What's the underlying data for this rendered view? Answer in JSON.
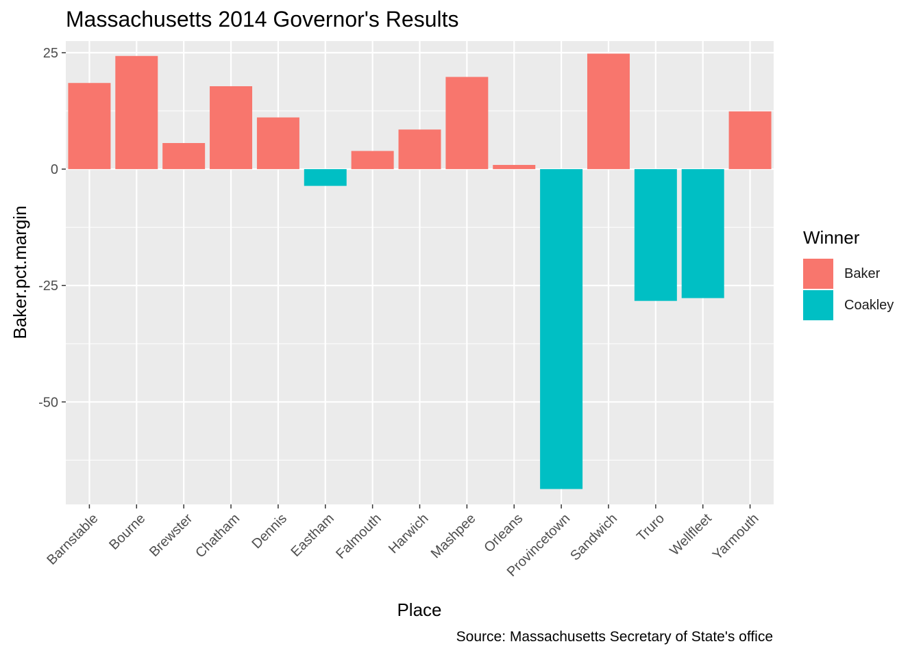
{
  "chart_data": {
    "type": "bar",
    "title": "Massachusetts 2014 Governor's Results",
    "xlabel": "Place",
    "ylabel": "Baker.pct.margin",
    "caption": "Source: Massachusetts Secretary of State's office",
    "ylim": [
      -72,
      27.5
    ],
    "yticks": [
      25,
      0,
      -25,
      -50
    ],
    "ytick_labels": [
      "25",
      "0",
      "-25",
      "-50"
    ],
    "grid": true,
    "legend_position": "right",
    "legend_title": "Winner",
    "categories": [
      "Barnstable",
      "Bourne",
      "Brewster",
      "Chatham",
      "Dennis",
      "Eastham",
      "Falmouth",
      "Harwich",
      "Mashpee",
      "Orleans",
      "Provincetown",
      "Sandwich",
      "Truro",
      "Wellfleet",
      "Yarmouth"
    ],
    "values": [
      18.5,
      24.3,
      5.6,
      17.8,
      11.1,
      -3.6,
      3.9,
      8.5,
      19.8,
      0.9,
      -68.7,
      24.8,
      -28.3,
      -27.7,
      12.4
    ],
    "winner": [
      "Baker",
      "Baker",
      "Baker",
      "Baker",
      "Baker",
      "Coakley",
      "Baker",
      "Baker",
      "Baker",
      "Baker",
      "Coakley",
      "Baker",
      "Coakley",
      "Coakley",
      "Baker"
    ],
    "series": [
      {
        "name": "Baker",
        "color": "#F8766D"
      },
      {
        "name": "Coakley",
        "color": "#00BFC4"
      }
    ]
  },
  "colors": {
    "panel_background": "#EBEBEB",
    "grid_major": "#FFFFFF",
    "axis_text": "#4D4D4D"
  }
}
